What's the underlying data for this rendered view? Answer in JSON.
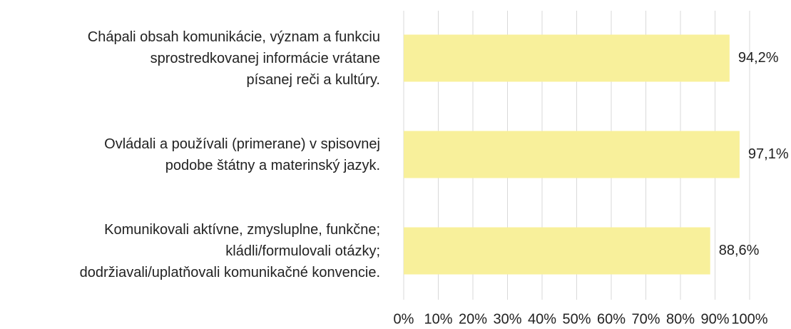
{
  "chart_data": {
    "type": "bar",
    "orientation": "horizontal",
    "categories": [
      "Chápali obsah komunikácie, význam a funkciu\nsprostredkovanej informácie vrátane\npísanej reči a kultúry.",
      "Ovládali a používali (primerane) v spisovnej\npodobe štátny a materinský jazyk.",
      "Komunikovali aktívne, zmysluplne, funkčne;\nkládli/formulovali otázky;\ndodržiavali/uplatňovali komunikačné konvencie."
    ],
    "values": [
      94.2,
      97.1,
      88.6
    ],
    "value_labels": [
      "94,2%",
      "97,1%",
      "88,6%"
    ],
    "color": "#f8f09b",
    "xlim": [
      0,
      100
    ],
    "xticks": [
      {
        "value": 0,
        "label": "0%"
      },
      {
        "value": 10,
        "label": "10%"
      },
      {
        "value": 20,
        "label": "20%"
      },
      {
        "value": 30,
        "label": "30%"
      },
      {
        "value": 40,
        "label": "40%"
      },
      {
        "value": 50,
        "label": "50%"
      },
      {
        "value": 60,
        "label": "60%"
      },
      {
        "value": 70,
        "label": "70%"
      },
      {
        "value": 80,
        "label": "80%"
      },
      {
        "value": 90,
        "label": "90%"
      },
      {
        "value": 100,
        "label": "100%"
      }
    ],
    "grid": true
  }
}
